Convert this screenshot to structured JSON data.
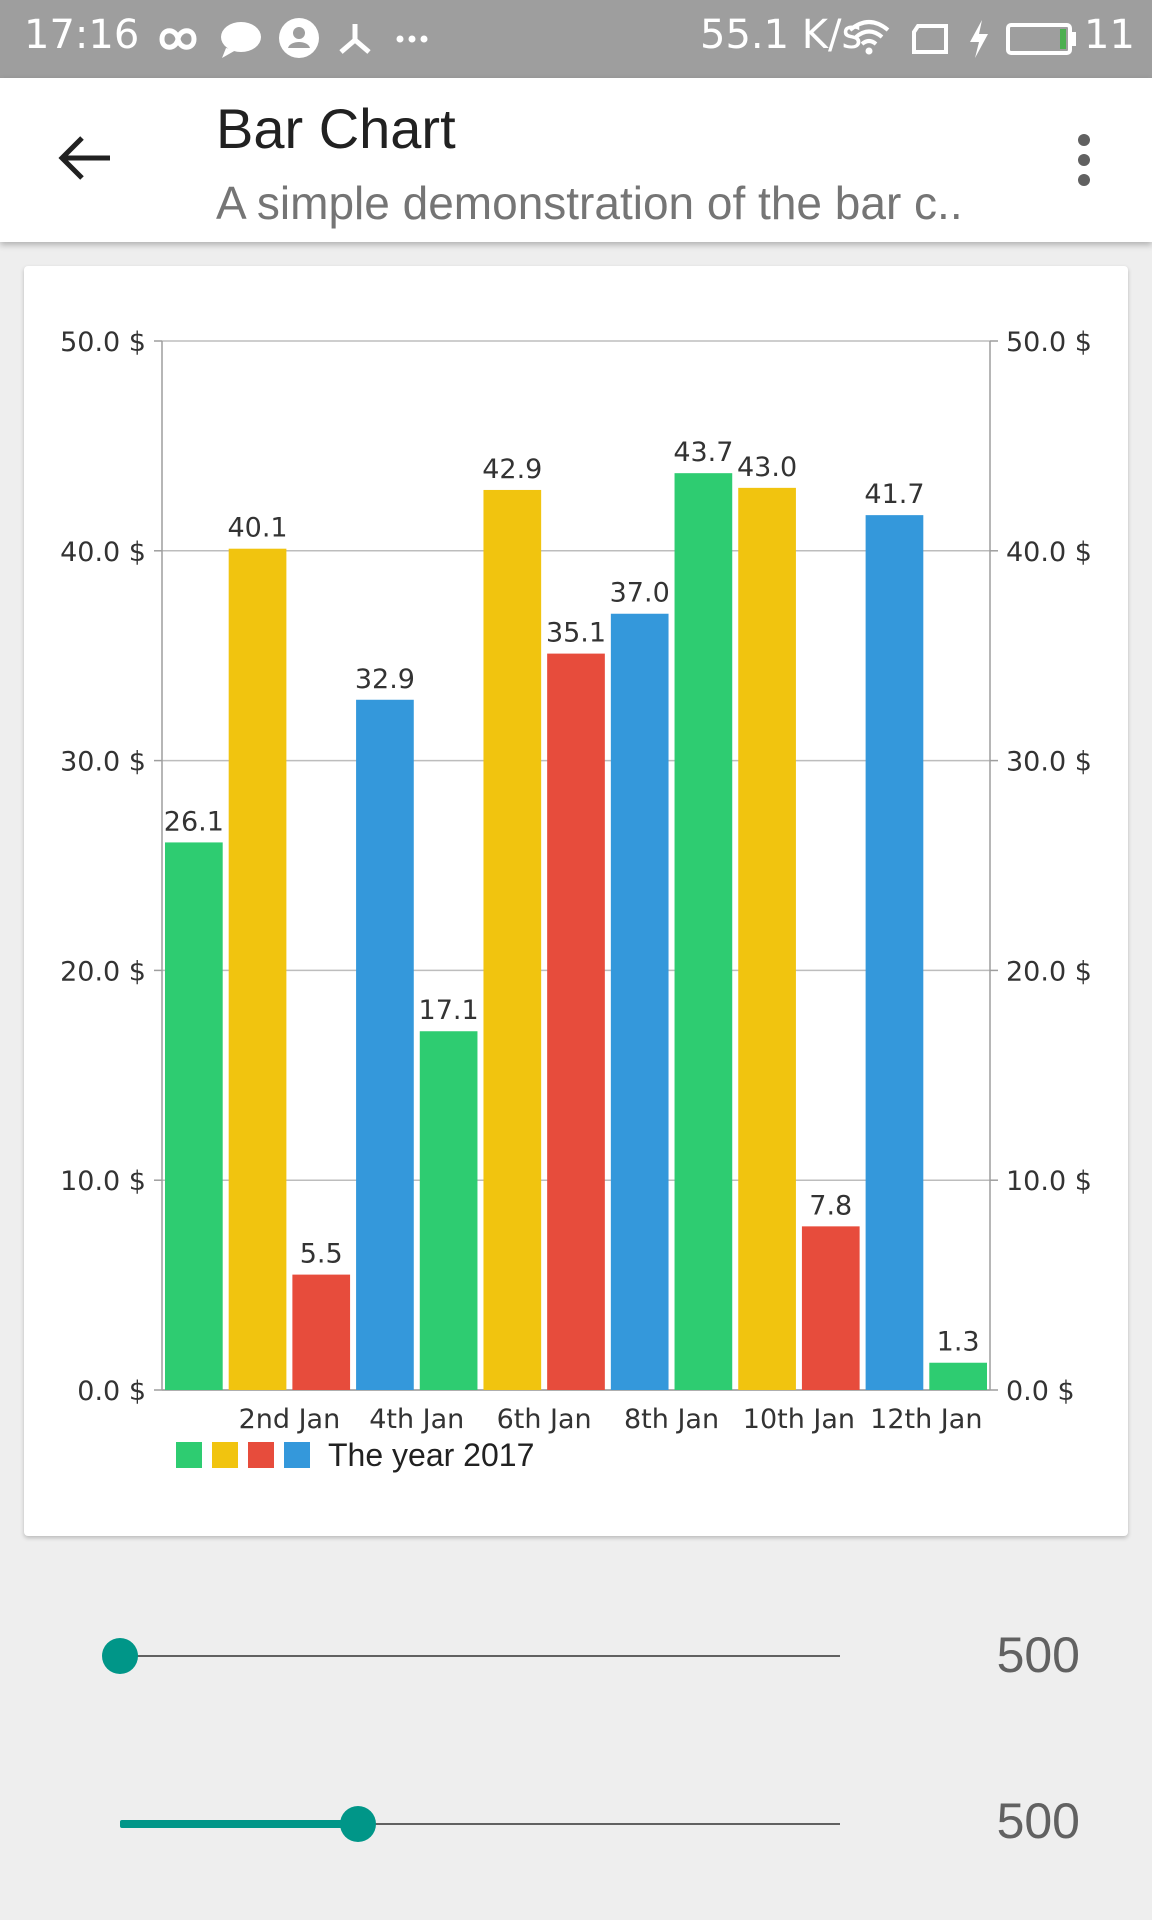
{
  "status_bar": {
    "time": "17:16",
    "speed": "55.1 K/s",
    "battery": "11"
  },
  "app_bar": {
    "title": "Bar Chart",
    "subtitle": "A simple demonstration of the bar c.."
  },
  "chart_data": {
    "type": "bar",
    "title": "",
    "xlabel": "",
    "ylabel": "",
    "ylim": [
      0,
      50
    ],
    "y_ticks": [
      "0.0 $",
      "10.0 $",
      "20.0 $",
      "30.0 $",
      "40.0 $",
      "50.0 $"
    ],
    "right_axis": true,
    "grid": "horizontal",
    "x_tick_labels": [
      "2nd Jan",
      "4th Jan",
      "6th Jan",
      "8th Jan",
      "10th Jan",
      "12th Jan"
    ],
    "values": [
      26.1,
      40.1,
      5.5,
      32.9,
      17.1,
      42.9,
      35.1,
      37.0,
      43.7,
      43.0,
      7.8,
      41.7,
      1.3
    ],
    "value_labels": [
      "26.1",
      "40.1",
      "5.5",
      "32.9",
      "17.1",
      "42.9",
      "35.1",
      "37.0",
      "43.7",
      "43.0",
      "7.8",
      "41.7",
      "1.3"
    ],
    "bar_colors": [
      "#2ecc71",
      "#f1c40f",
      "#e74c3c",
      "#3498db"
    ],
    "legend": {
      "label": "The year 2017",
      "position": "bottom-left"
    }
  },
  "sliders": [
    {
      "value_label": "500",
      "position": 0.0
    },
    {
      "value_label": "500",
      "position": 0.33
    }
  ]
}
